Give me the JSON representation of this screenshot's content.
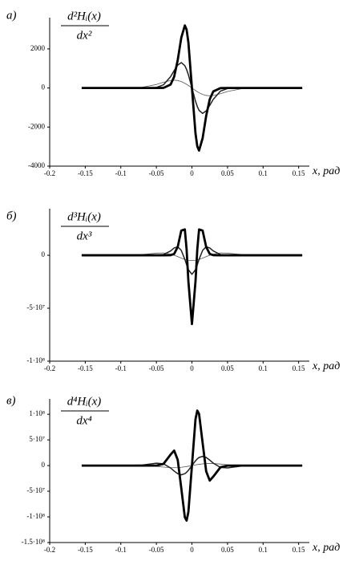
{
  "chart_data": [
    {
      "type": "line",
      "panel_label": "а)",
      "ylabel_top": "d²Hᵢ(x)",
      "ylabel_bottom": "dx²",
      "xlabel": "x, рад",
      "x": [
        -0.155,
        -0.1,
        -0.07,
        -0.05,
        -0.04,
        -0.03,
        -0.025,
        -0.02,
        -0.015,
        -0.01,
        -0.0075,
        -0.005,
        0,
        0.005,
        0.0075,
        0.01,
        0.015,
        0.02,
        0.025,
        0.03,
        0.04,
        0.05,
        0.07,
        0.1,
        0.155
      ],
      "series": [
        {
          "color": "#555555",
          "values": [
            0,
            1,
            37,
            178,
            293,
            385,
            400,
            383,
            330,
            243,
            189,
            129,
            0,
            -129,
            -189,
            -243,
            -330,
            -383,
            -400,
            -385,
            -293,
            -178,
            -37,
            -1,
            0
          ]
        },
        {
          "color": "#222222",
          "values": [
            0,
            0,
            0,
            28,
            163,
            580,
            891,
            1172,
            1300,
            1145,
            945,
            675,
            0,
            -675,
            -945,
            -1145,
            -1300,
            -1172,
            -891,
            -580,
            -163,
            -28,
            0,
            0,
            0
          ]
        },
        {
          "color": "#000000",
          "values": [
            0,
            0,
            0,
            0,
            7,
            176,
            579,
            1428,
            2570,
            3200,
            2988,
            2328,
            0,
            -2328,
            -2988,
            -3200,
            -2570,
            -1428,
            -579,
            -176,
            -7,
            0,
            0,
            0,
            0
          ]
        }
      ],
      "xlim": [
        -0.2,
        0.165
      ],
      "xticks": [
        -0.2,
        -0.15,
        -0.1,
        -0.05,
        0,
        0.05,
        0.1,
        0.15
      ],
      "ylim": [
        -4000,
        3600
      ],
      "yticks": [
        -4000,
        -2000,
        0,
        2000
      ]
    },
    {
      "type": "line",
      "panel_label": "б)",
      "ylabel_top": "d³Hᵢ(x)",
      "ylabel_bottom": "dx³",
      "xlabel": "x, рад",
      "x": [
        -0.155,
        -0.1,
        -0.07,
        -0.05,
        -0.04,
        -0.03,
        -0.025,
        -0.02,
        -0.015,
        -0.01,
        -0.0075,
        -0.005,
        0,
        0.005,
        0.0075,
        0.01,
        0.015,
        0.02,
        0.025,
        0.03,
        0.04,
        0.05,
        0.07,
        0.1,
        0.155
      ],
      "series": [
        {
          "color": "#555555",
          "values": [
            0,
            0,
            700000,
            2000000,
            2200000,
            1100000,
            0,
            -1300000,
            -2700000,
            -3900000,
            -4300000,
            -4700000,
            -5000000,
            -4700000,
            -4300000,
            -3900000,
            -2700000,
            -1300000,
            0,
            1100000,
            2200000,
            2000000,
            700000,
            0,
            0
          ]
        },
        {
          "color": "#222222",
          "values": [
            0,
            0,
            0,
            0,
            700000,
            4100000,
            6900000,
            8000000,
            4600000,
            -3900000,
            -9000000,
            -13600000,
            -18000000,
            -13600000,
            -9000000,
            -3900000,
            4600000,
            8000000,
            6900000,
            4100000,
            700000,
            0,
            0,
            0,
            0
          ]
        },
        {
          "color": "#000000",
          "values": [
            0,
            0,
            0,
            0,
            0,
            100000,
            1300000,
            7900000,
            23300000,
            24400000,
            5400000,
            -24700000,
            -65000000,
            -24700000,
            5400000,
            24400000,
            23300000,
            7900000,
            1300000,
            100000,
            0,
            0,
            0,
            0,
            0
          ]
        }
      ],
      "xlim": [
        -0.2,
        0.165
      ],
      "xticks": [
        -0.2,
        -0.15,
        -0.1,
        -0.05,
        0,
        0.05,
        0.1,
        0.15
      ],
      "ylim": [
        -100000000,
        44000000
      ],
      "yticks": [
        {
          "value": -100000000,
          "label": "-1·10⁸"
        },
        {
          "value": -50000000,
          "label": "-5·10⁷"
        },
        0
      ]
    },
    {
      "type": "line",
      "panel_label": "в)",
      "ylabel_top": "d⁴Hᵢ(x)",
      "ylabel_bottom": "dx⁴",
      "xlabel": "x, рад",
      "x": [
        -0.155,
        -0.1,
        -0.07,
        -0.05,
        -0.04,
        -0.03,
        -0.025,
        -0.02,
        -0.015,
        -0.01,
        -0.0075,
        -0.005,
        0,
        0.005,
        0.0075,
        0.01,
        0.015,
        0.02,
        0.025,
        0.03,
        0.04,
        0.05,
        0.07,
        0.1,
        0.155
      ],
      "series": [
        {
          "color": "#555555",
          "values": [
            0,
            800000,
            800000,
            -1500000,
            -3000000,
            -4000000,
            -4100000,
            -3900000,
            -3300000,
            -2400000,
            -1900000,
            -1300000,
            0,
            1300000,
            1900000,
            2400000,
            3300000,
            3900000,
            4100000,
            4000000,
            3000000,
            1500000,
            -800000,
            -800000,
            0
          ]
        },
        {
          "color": "#222222",
          "values": [
            0,
            0,
            900000,
            4600000,
            3500000,
            -4700000,
            -10700000,
            -15800000,
            -18000000,
            -15800000,
            -13000000,
            -9200000,
            0,
            9200000,
            13000000,
            15800000,
            18000000,
            15800000,
            10700000,
            4700000,
            -3500000,
            -4600000,
            -900000,
            0,
            0
          ]
        },
        {
          "color": "#000000",
          "values": [
            0,
            0,
            0,
            0,
            3300000,
            21500000,
            29200000,
            11200000,
            -44200000,
            -100800000,
            -107200000,
            -90300000,
            0,
            90300000,
            107200000,
            100800000,
            44200000,
            -11200000,
            -29200000,
            -21500000,
            -3300000,
            0,
            0,
            0,
            0
          ]
        }
      ],
      "xlim": [
        -0.2,
        0.165
      ],
      "xticks": [
        -0.2,
        -0.15,
        -0.1,
        -0.05,
        0,
        0.05,
        0.1,
        0.15
      ],
      "ylim": [
        -150000000,
        130000000
      ],
      "yticks": [
        {
          "value": -150000000,
          "label": "-1.5·10⁸"
        },
        {
          "value": -100000000,
          "label": "-1·10⁸"
        },
        {
          "value": -50000000,
          "label": "-5·10⁷"
        },
        0,
        {
          "value": 50000000,
          "label": "5·10⁷"
        },
        {
          "value": 100000000,
          "label": "1·10⁸"
        }
      ]
    }
  ]
}
